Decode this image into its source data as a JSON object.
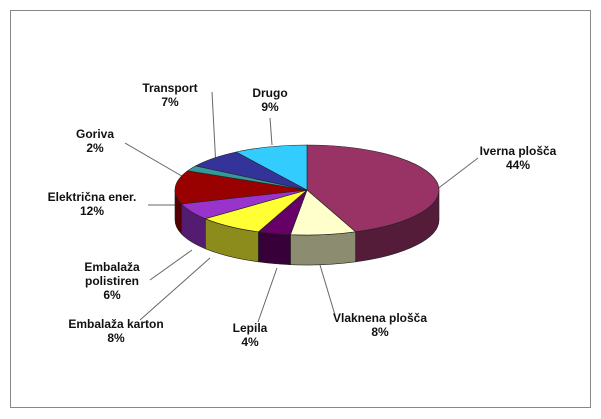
{
  "chart_data": {
    "type": "pie",
    "categories": [
      "Iverna plošča",
      "Vlaknena plošča",
      "Lepila",
      "Embalaža karton",
      "Embalaža polistiren",
      "Električna ener.",
      "Goriva",
      "Transport",
      "Drugo"
    ],
    "values": [
      44,
      8,
      4,
      8,
      6,
      12,
      2,
      7,
      9
    ],
    "value_labels": [
      "44%",
      "8%",
      "4%",
      "8%",
      "6%",
      "12%",
      "2%",
      "7%",
      "9%"
    ],
    "colors": [
      "#993366",
      "#ffffcc",
      "#660066",
      "#ffff33",
      "#9933cc",
      "#990000",
      "#339999",
      "#333399",
      "#33ccff"
    ]
  }
}
